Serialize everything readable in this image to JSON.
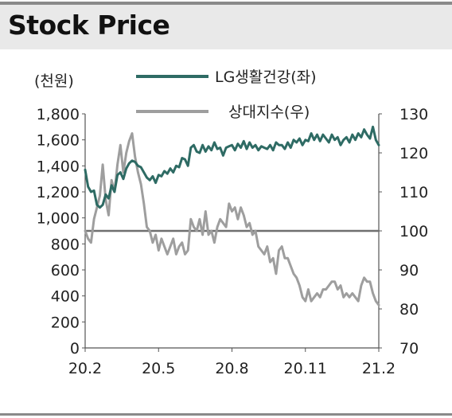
{
  "title": "Stock Price",
  "chart_data": {
    "type": "line",
    "unit_label": "(천원)",
    "x_ticks": [
      "20.2",
      "20.5",
      "20.8",
      "20.11",
      "21.2"
    ],
    "y_left": {
      "min": 0,
      "max": 1800,
      "ticks": [
        "0",
        "200",
        "400",
        "600",
        "800",
        "1,000",
        "1,200",
        "1,400",
        "1,600",
        "1,800"
      ]
    },
    "y_right": {
      "min": 70,
      "max": 130,
      "ticks": [
        "70",
        "80",
        "90",
        "100",
        "110",
        "120",
        "130"
      ]
    },
    "reference_line_right": 100,
    "colors": {
      "stock": "#2e6b64",
      "relative": "#9e9e9e",
      "reference": "#6f6f6f"
    },
    "series": [
      {
        "name": "LG생활건강(좌)",
        "axis": "left",
        "x": [
          0,
          1,
          2,
          3,
          4,
          5,
          6,
          7,
          8,
          9,
          10,
          11,
          12,
          13,
          14,
          15,
          16,
          17,
          18,
          19,
          20,
          21,
          22,
          23,
          24,
          25,
          26,
          27,
          28,
          29,
          30,
          31,
          32,
          33,
          34,
          35,
          36,
          37,
          38,
          39,
          40,
          41,
          42,
          43,
          44,
          45,
          46,
          47,
          48,
          49,
          50,
          51,
          52,
          53,
          54,
          55,
          56,
          57,
          58,
          59,
          60,
          61,
          62,
          63,
          64,
          65,
          66,
          67,
          68,
          69,
          70,
          71,
          72,
          73,
          74,
          75,
          76,
          77,
          78,
          79,
          80,
          81,
          82,
          83,
          84,
          85,
          86,
          87,
          88,
          89,
          90,
          91,
          92,
          93,
          94,
          95,
          96,
          97,
          98,
          99,
          100
        ],
        "values": [
          1370,
          1240,
          1200,
          1210,
          1100,
          1080,
          1100,
          1180,
          1150,
          1250,
          1200,
          1330,
          1350,
          1300,
          1380,
          1420,
          1440,
          1430,
          1400,
          1390,
          1350,
          1310,
          1290,
          1320,
          1270,
          1330,
          1320,
          1360,
          1340,
          1380,
          1350,
          1400,
          1390,
          1460,
          1450,
          1400,
          1540,
          1560,
          1510,
          1500,
          1560,
          1510,
          1550,
          1520,
          1580,
          1530,
          1540,
          1480,
          1540,
          1550,
          1560,
          1520,
          1570,
          1540,
          1590,
          1530,
          1580,
          1540,
          1560,
          1520,
          1550,
          1540,
          1530,
          1560,
          1520,
          1580,
          1560,
          1560,
          1530,
          1580,
          1540,
          1600,
          1580,
          1610,
          1560,
          1600,
          1590,
          1650,
          1600,
          1640,
          1590,
          1640,
          1610,
          1580,
          1640,
          1600,
          1620,
          1560,
          1600,
          1620,
          1580,
          1640,
          1600,
          1650,
          1620,
          1680,
          1640,
          1610,
          1700,
          1600,
          1560
        ]
      },
      {
        "name": "상대지수(우)",
        "axis": "right",
        "x": [
          0,
          1,
          2,
          3,
          4,
          5,
          6,
          7,
          8,
          9,
          10,
          11,
          12,
          13,
          14,
          15,
          16,
          17,
          18,
          19,
          20,
          21,
          22,
          23,
          24,
          25,
          26,
          27,
          28,
          29,
          30,
          31,
          32,
          33,
          34,
          35,
          36,
          37,
          38,
          39,
          40,
          41,
          42,
          43,
          44,
          45,
          46,
          47,
          48,
          49,
          50,
          51,
          52,
          53,
          54,
          55,
          56,
          57,
          58,
          59,
          60,
          61,
          62,
          63,
          64,
          65,
          66,
          67,
          68,
          69,
          70,
          71,
          72,
          73,
          74,
          75,
          76,
          77,
          78,
          79,
          80,
          81,
          82,
          83,
          84,
          85,
          86,
          87,
          88,
          89,
          90,
          91,
          92,
          93,
          94,
          95,
          96,
          97,
          98,
          99,
          100
        ],
        "values": [
          100,
          98,
          97,
          103,
          106,
          109,
          117,
          108,
          104,
          113,
          110,
          117,
          122,
          115,
          120,
          123,
          125,
          119,
          115,
          112,
          107,
          101,
          100,
          97,
          99,
          95,
          98,
          96,
          94,
          96,
          98,
          94,
          96,
          97,
          94,
          95,
          103,
          101,
          100,
          103,
          99,
          105,
          99,
          100,
          97,
          101,
          103,
          102,
          101,
          107,
          105,
          106,
          103,
          106,
          104,
          101,
          102,
          99,
          100,
          96,
          95,
          94,
          96,
          92,
          93,
          89,
          95,
          96,
          93,
          93,
          91,
          89,
          88,
          86,
          83,
          82,
          85,
          82,
          83,
          84,
          83,
          85,
          85,
          86,
          87,
          87,
          85,
          86,
          83,
          84,
          83,
          84,
          83,
          82,
          86,
          88,
          87,
          87,
          84,
          82,
          81
        ]
      }
    ]
  }
}
